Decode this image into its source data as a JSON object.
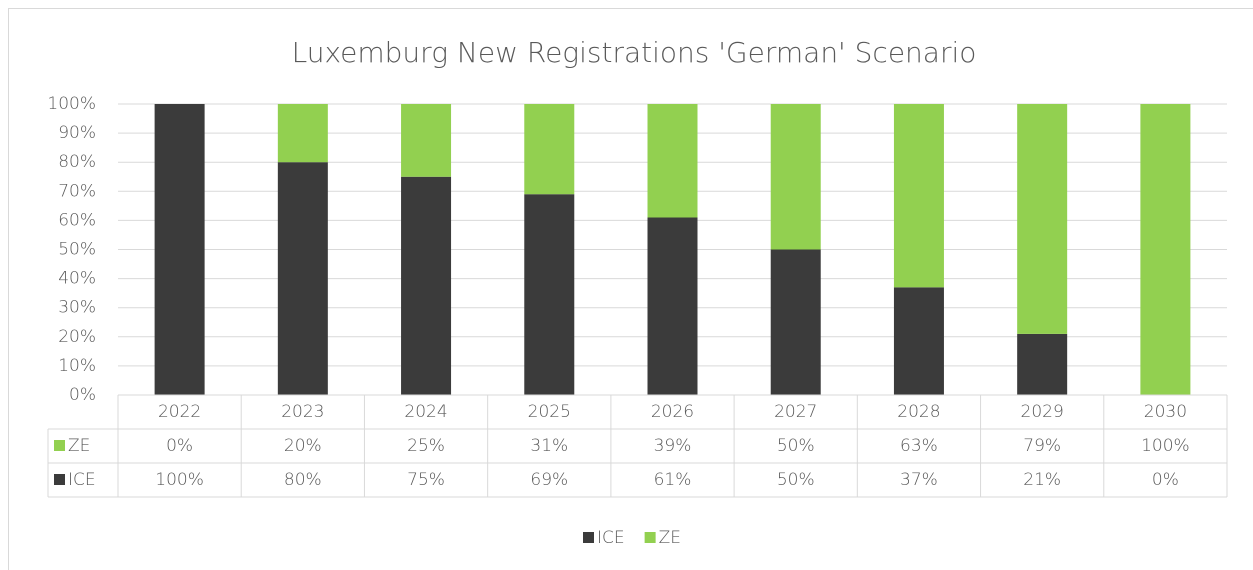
{
  "chart_data": {
    "type": "stacked_bar",
    "title": "Luxemburg New Registrations 'German' Scenario",
    "categories": [
      "2022",
      "2023",
      "2024",
      "2025",
      "2026",
      "2027",
      "2028",
      "2029",
      "2030"
    ],
    "series": [
      {
        "name": "ICE",
        "color": "#3b3b3b",
        "values": [
          100,
          80,
          75,
          69,
          61,
          50,
          37,
          21,
          0
        ],
        "value_labels": [
          "100%",
          "80%",
          "75%",
          "69%",
          "61%",
          "50%",
          "37%",
          "21%",
          "0%"
        ]
      },
      {
        "name": "ZE",
        "color": "#92d050",
        "values": [
          0,
          20,
          25,
          31,
          39,
          50,
          63,
          79,
          100
        ],
        "value_labels": [
          "0%",
          "20%",
          "25%",
          "31%",
          "39%",
          "50%",
          "63%",
          "79%",
          "100%"
        ]
      }
    ],
    "ylim": [
      0,
      100
    ],
    "yticks": [
      {
        "value": 0,
        "label": "0%"
      },
      {
        "value": 10,
        "label": "10%"
      },
      {
        "value": 20,
        "label": "20%"
      },
      {
        "value": 30,
        "label": "30%"
      },
      {
        "value": 40,
        "label": "40%"
      },
      {
        "value": 50,
        "label": "50%"
      },
      {
        "value": 60,
        "label": "60%"
      },
      {
        "value": 70,
        "label": "70%"
      },
      {
        "value": 80,
        "label": "80%"
      },
      {
        "value": 90,
        "label": "90%"
      },
      {
        "value": 100,
        "label": "100%"
      }
    ],
    "grid": true,
    "legend": "bottom"
  }
}
